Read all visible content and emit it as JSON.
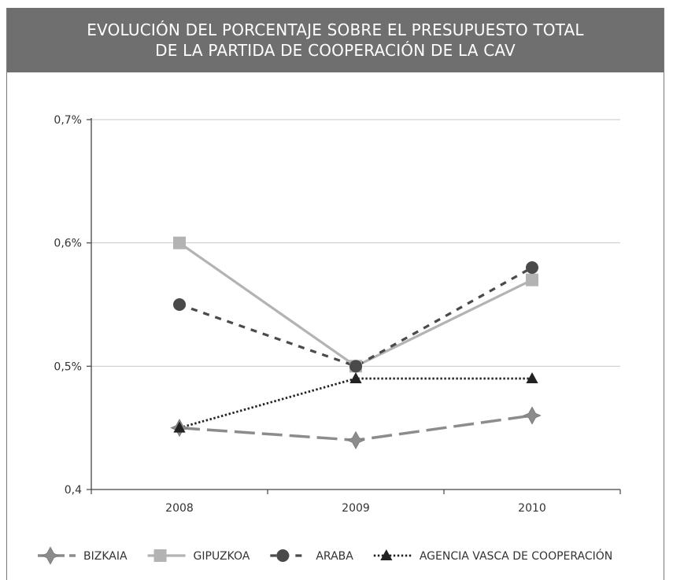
{
  "chart_data": {
    "type": "line",
    "title": [
      "EVOLUCIÓN DEL PORCENTAJE SOBRE EL PRESUPUESTO TOTAL",
      "DE LA PARTIDA DE COOPERACIÓN DE LA CAV"
    ],
    "categories": [
      "2008",
      "2009",
      "2010"
    ],
    "ylim": [
      0.4,
      0.7
    ],
    "yticks": [
      0.4,
      0.5,
      0.6,
      0.7
    ],
    "ytick_labels": [
      "0,4",
      "0,5%",
      "0,6%",
      "0,7%"
    ],
    "grid": true,
    "legend_position": "bottom",
    "series": [
      {
        "name": "BIZKAIA",
        "values": [
          0.45,
          0.44,
          0.46
        ],
        "color": "#8c8c8c",
        "marker": "diamond",
        "dash": "long-dash"
      },
      {
        "name": "GIPUZKOA",
        "values": [
          0.6,
          0.5,
          0.57
        ],
        "color": "#b3b3b3",
        "marker": "square",
        "dash": "solid"
      },
      {
        "name": "ARABA",
        "values": [
          0.55,
          0.5,
          0.58
        ],
        "color": "#4a4a4a",
        "marker": "circle",
        "dash": "dash"
      },
      {
        "name": "AGENCIA VASCA DE COOPERACIÓN",
        "values": [
          0.45,
          0.49,
          0.49
        ],
        "color": "#222222",
        "marker": "triangle",
        "dash": "dot"
      }
    ]
  }
}
